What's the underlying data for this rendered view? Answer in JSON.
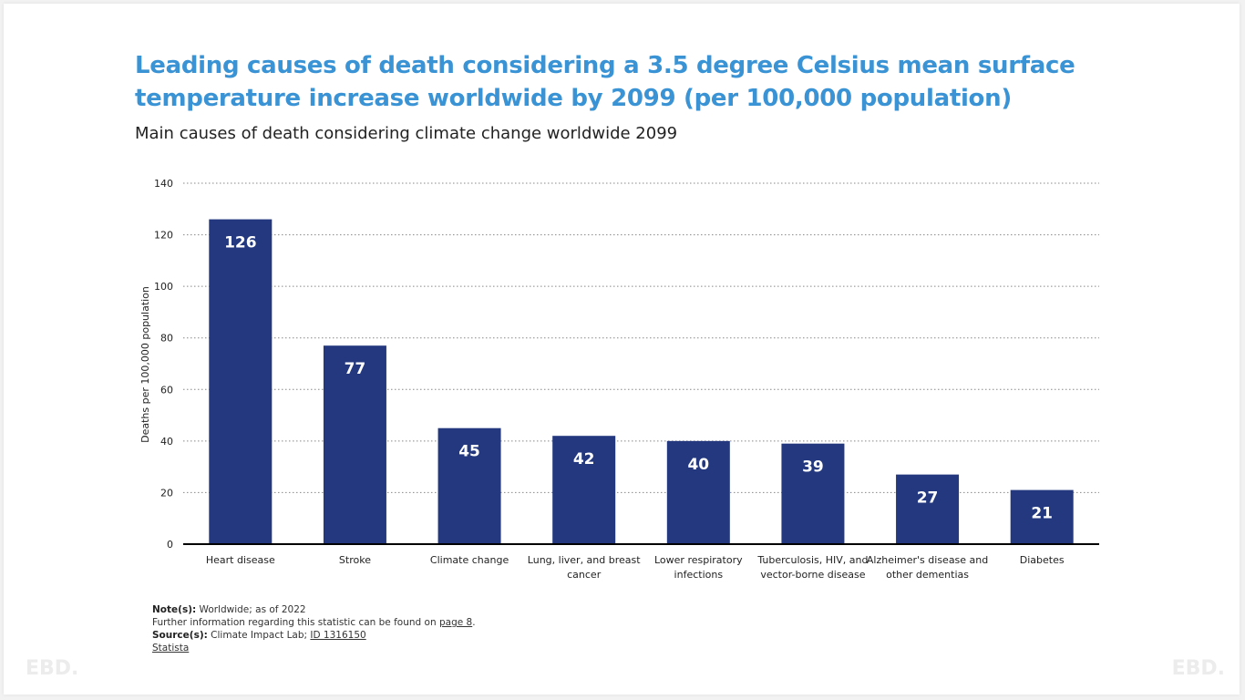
{
  "chart_data": {
    "type": "bar",
    "title": "Leading causes of death considering a 3.5 degree Celsius mean surface temperature increase worldwide by 2099 (per 100,000 population)",
    "subtitle": "Main causes of death considering climate change worldwide 2099",
    "xlabel": "",
    "ylabel": "Deaths per 100,000 population",
    "ylim": [
      0,
      140
    ],
    "yticks": [
      0,
      20,
      40,
      60,
      80,
      100,
      120,
      140
    ],
    "grid": true,
    "categories": [
      [
        "Heart disease"
      ],
      [
        "Stroke"
      ],
      [
        "Climate change"
      ],
      [
        "Lung, liver, and breast",
        "cancer"
      ],
      [
        "Lower respiratory",
        "infections"
      ],
      [
        "Tuberculosis, HIV, and",
        "vector-borne disease"
      ],
      [
        "Alzheimer's disease and",
        "other dementias"
      ],
      [
        "Diabetes"
      ]
    ],
    "values": [
      126,
      77,
      45,
      42,
      40,
      39,
      27,
      21
    ],
    "bar_color": "#23387e"
  },
  "notes": {
    "note_label": "Note(s):",
    "note_text": "Worldwide; as of 2022",
    "further_text": "Further information regarding this statistic can be found on ",
    "further_link": "page 8",
    "source_label": "Source(s):",
    "source_text": "Climate Impact Lab; ",
    "source_id": "ID 1316150",
    "statista": "Statista"
  },
  "watermark": "EBD."
}
